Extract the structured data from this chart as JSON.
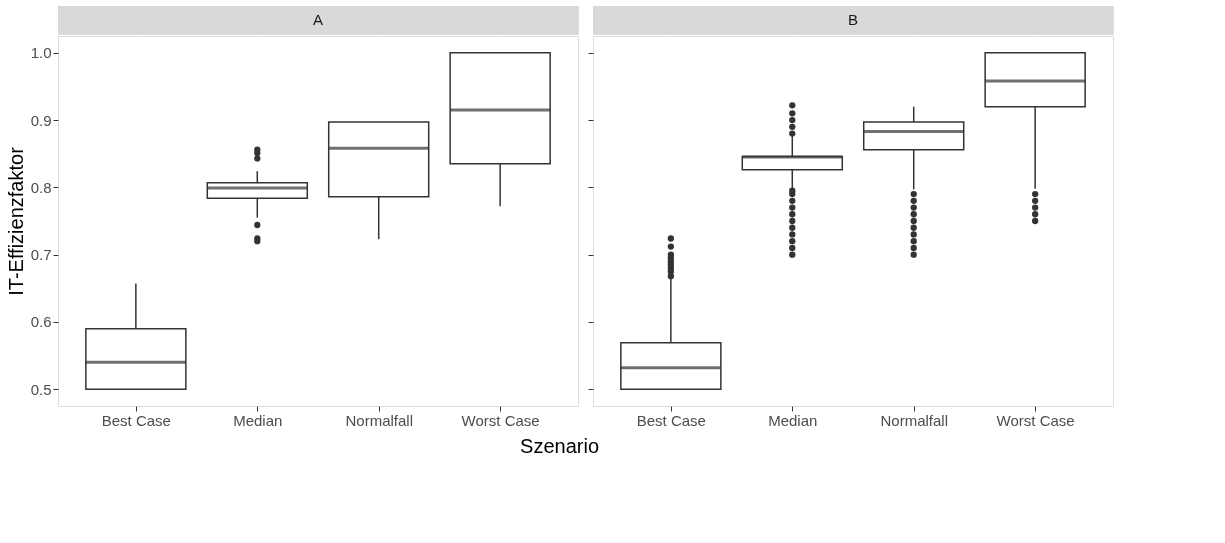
{
  "chart_data": [
    {
      "type": "box",
      "title": "A",
      "xlabel": "Szenario",
      "ylabel": "IT-Effizienzfaktor",
      "categories": [
        "Best Case",
        "Median",
        "Normalfall",
        "Worst Case"
      ],
      "boxes": [
        {
          "low": 0.5,
          "q1": 0.5,
          "median": 0.54,
          "q3": 0.59,
          "high": 0.657
        },
        {
          "low": 0.755,
          "q1": 0.784,
          "median": 0.799,
          "q3": 0.807,
          "high": 0.824,
          "outliers": [
            0.744,
            0.724,
            0.72,
            0.843,
            0.851,
            0.856
          ]
        },
        {
          "low": 0.723,
          "q1": 0.786,
          "median": 0.858,
          "q3": 0.897,
          "high": 0.897
        },
        {
          "low": 0.772,
          "q1": 0.835,
          "median": 0.915,
          "q3": 1.0,
          "high": 1.0
        }
      ],
      "ylim": [
        0.475,
        1.025
      ],
      "yticks": [
        {
          "value": 0.5,
          "label": "0.5"
        },
        {
          "value": 0.6,
          "label": "0.6"
        },
        {
          "value": 0.7,
          "label": "0.7"
        },
        {
          "value": 0.8,
          "label": "0.8"
        },
        {
          "value": 0.9,
          "label": "0.9"
        },
        {
          "value": 1.0,
          "label": "1.0"
        }
      ],
      "grid": true
    },
    {
      "type": "box",
      "title": "B",
      "categories": [
        "Best Case",
        "Median",
        "Normalfall",
        "Worst Case"
      ],
      "boxes": [
        {
          "low": 0.5,
          "q1": 0.5,
          "median": 0.532,
          "q3": 0.569,
          "high": 0.666,
          "outliers": [
            0.668,
            0.675,
            0.68,
            0.685,
            0.69,
            0.695,
            0.7,
            0.712,
            0.724
          ]
        },
        {
          "low": 0.798,
          "q1": 0.826,
          "median": 0.845,
          "q3": 0.846,
          "high": 0.876,
          "outliers": [
            0.7,
            0.71,
            0.72,
            0.73,
            0.74,
            0.75,
            0.76,
            0.77,
            0.78,
            0.79,
            0.795,
            0.88,
            0.89,
            0.9,
            0.91,
            0.922
          ]
        },
        {
          "low": 0.797,
          "q1": 0.856,
          "median": 0.883,
          "q3": 0.897,
          "high": 0.92,
          "outliers": [
            0.7,
            0.71,
            0.72,
            0.73,
            0.74,
            0.75,
            0.76,
            0.77,
            0.78,
            0.79
          ]
        },
        {
          "low": 0.798,
          "q1": 0.92,
          "median": 0.958,
          "q3": 1.0,
          "high": 1.0,
          "outliers": [
            0.75,
            0.76,
            0.77,
            0.78,
            0.79
          ]
        }
      ],
      "ylim": [
        0.475,
        1.025
      ],
      "yticks": [
        {
          "value": 0.5,
          "label": null
        },
        {
          "value": 0.6,
          "label": null
        },
        {
          "value": 0.7,
          "label": null
        },
        {
          "value": 0.8,
          "label": null
        },
        {
          "value": 0.9,
          "label": null
        },
        {
          "value": 1.0,
          "label": null
        }
      ],
      "grid": true,
      "tick_labels": "x"
    }
  ]
}
